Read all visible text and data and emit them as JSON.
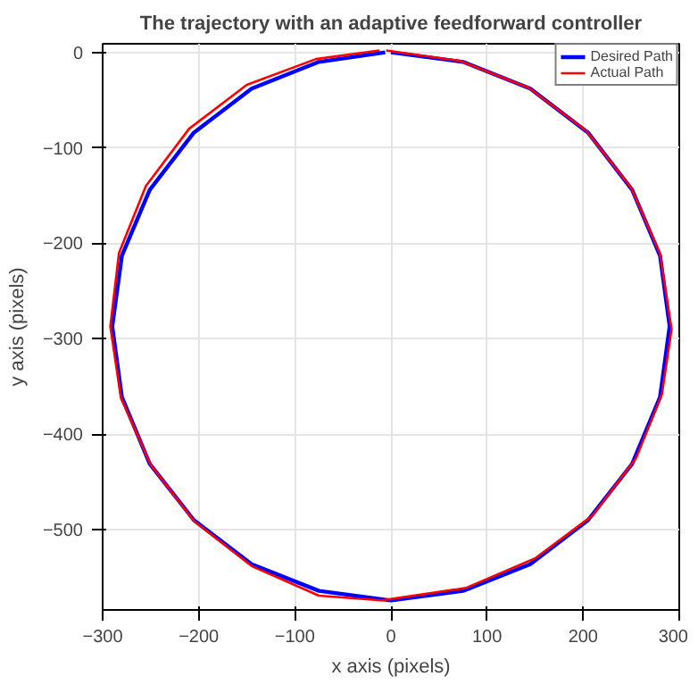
{
  "chart_data": {
    "type": "line",
    "title": "The trajectory with an adaptive feedforward controller",
    "xlabel": "x axis (pixels)",
    "ylabel": "y axis (pixels)",
    "xlim": [
      -300,
      300
    ],
    "ylim": [
      -584,
      9
    ],
    "xticks": [
      -300,
      -200,
      -100,
      0,
      100,
      200,
      300
    ],
    "yticks": [
      0,
      -100,
      -200,
      -300,
      -400,
      -500
    ],
    "grid": true,
    "legend": "top right",
    "line_style": "solid",
    "series": [
      {
        "name": "Desired Path",
        "color": "#0000ff",
        "x": [
          0,
          75,
          145,
          205,
          251,
          280,
          290,
          280,
          251,
          205,
          145,
          75,
          0,
          -75,
          -145,
          -205,
          -251,
          -280,
          -290,
          -280,
          -251,
          -205,
          -145,
          -75,
          -6
        ],
        "values": [
          0,
          -10,
          -38,
          -84,
          -144,
          -213,
          -287,
          -361,
          -431,
          -490,
          -536,
          -564,
          -574,
          -564,
          -536,
          -490,
          -431,
          -361,
          -287,
          -213,
          -144,
          -84,
          -38,
          -10,
          0
        ]
      },
      {
        "name": "Actual Path",
        "color": "#ff0000",
        "x": [
          -5,
          72,
          143,
          203,
          250,
          280,
          292,
          282,
          255,
          210,
          150,
          78,
          -10,
          -75,
          -145,
          -205,
          -250,
          -281,
          -292,
          -283,
          -255,
          -210,
          -150,
          -78,
          -12
        ],
        "values": [
          2,
          -9,
          -37,
          -82,
          -142,
          -211,
          -290,
          -358,
          -425,
          -485,
          -530,
          -561,
          -574,
          -569,
          -538,
          -491,
          -432,
          -362,
          -287,
          -210,
          -140,
          -80,
          -34,
          -7,
          2
        ]
      }
    ]
  }
}
